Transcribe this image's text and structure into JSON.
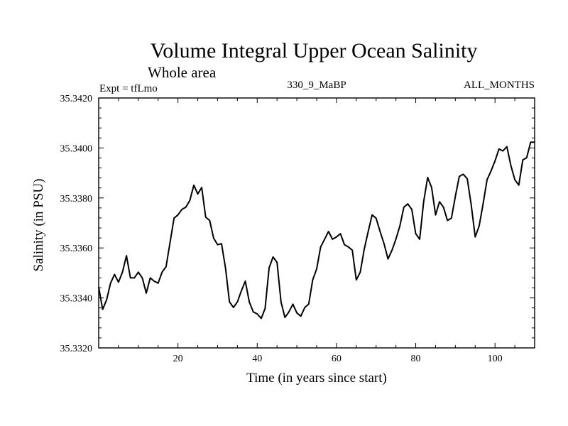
{
  "chart_data": {
    "type": "line",
    "title": "Volume Integral Upper Ocean Salinity",
    "subtitle": "Whole area",
    "expt_label": "Expt = tfLmo",
    "center_label": "330_9_MaBP",
    "right_label": "ALL_MONTHS",
    "xlabel": "Time (in years since start)",
    "ylabel": "Salinity (in PSU)",
    "xlim": [
      0,
      110
    ],
    "ylim": [
      35.332,
      35.342
    ],
    "xticks": [
      20,
      40,
      60,
      80,
      100
    ],
    "xtick_labels": [
      "20",
      "40",
      "60",
      "80",
      "100"
    ],
    "yticks": [
      35.332,
      35.334,
      35.336,
      35.338,
      35.34,
      35.342
    ],
    "ytick_labels": [
      "35.3320",
      "35.3340",
      "35.3360",
      "35.3380",
      "35.3400",
      "35.3420"
    ],
    "grid": false,
    "series": [
      {
        "name": "salinity",
        "x": [
          0,
          1,
          2,
          3,
          4,
          5,
          6,
          7,
          8,
          9,
          10,
          11,
          12,
          13,
          14,
          15,
          16,
          17,
          18,
          19,
          20,
          21,
          22,
          23,
          24,
          25,
          26,
          27,
          28,
          29,
          30,
          31,
          32,
          33,
          34,
          35,
          36,
          37,
          38,
          39,
          40,
          41,
          42,
          43,
          44,
          45,
          46,
          47,
          48,
          49,
          50,
          51,
          52,
          53,
          54,
          55,
          56,
          57,
          58,
          59,
          60,
          61,
          62,
          63,
          64,
          65,
          66,
          67,
          68,
          69,
          70,
          71,
          72,
          73,
          74,
          75,
          76,
          77,
          78,
          79,
          80,
          81,
          82,
          83,
          84,
          85,
          86,
          87,
          88,
          89,
          90,
          91,
          92,
          93,
          94,
          95,
          96,
          97,
          98,
          99,
          100,
          101,
          102,
          103,
          104,
          105,
          106,
          107,
          108,
          109,
          110
        ],
        "values": [
          35.33443,
          35.33354,
          35.33393,
          35.33459,
          35.33494,
          35.33463,
          35.33503,
          35.33569,
          35.3348,
          35.3348,
          35.33503,
          35.3348,
          35.33419,
          35.3348,
          35.33467,
          35.33459,
          35.33503,
          35.33525,
          35.33622,
          35.33719,
          35.33732,
          35.33754,
          35.33763,
          35.3379,
          35.33851,
          35.33816,
          35.33842,
          35.33723,
          35.3371,
          35.33639,
          35.33613,
          35.33617,
          35.3352,
          35.33384,
          35.33362,
          35.33384,
          35.33428,
          35.33467,
          35.33384,
          35.33344,
          35.33336,
          35.33318,
          35.33358,
          35.3352,
          35.33564,
          35.33542,
          35.33384,
          35.33322,
          35.33344,
          35.33375,
          35.3334,
          35.33327,
          35.33362,
          35.33375,
          35.33472,
          35.33516,
          35.33604,
          35.33635,
          35.33666,
          35.33635,
          35.33644,
          35.33657,
          35.33613,
          35.33604,
          35.33591,
          35.33472,
          35.33503,
          35.33595,
          35.33666,
          35.33732,
          35.33719,
          35.33666,
          35.33617,
          35.33556,
          35.33591,
          35.33635,
          35.33688,
          35.33763,
          35.33776,
          35.33754,
          35.33657,
          35.33635,
          35.33785,
          35.33882,
          35.33842,
          35.33732,
          35.33785,
          35.33763,
          35.3371,
          35.33719,
          35.33807,
          35.33886,
          35.33895,
          35.33877,
          35.33772,
          35.33644,
          35.33688,
          35.33776,
          35.33873,
          35.33908,
          35.33948,
          35.33996,
          35.33988,
          35.34005,
          35.3393,
          35.33873,
          35.33851,
          35.33952,
          35.33961,
          35.34023,
          35.34023
        ]
      }
    ]
  }
}
